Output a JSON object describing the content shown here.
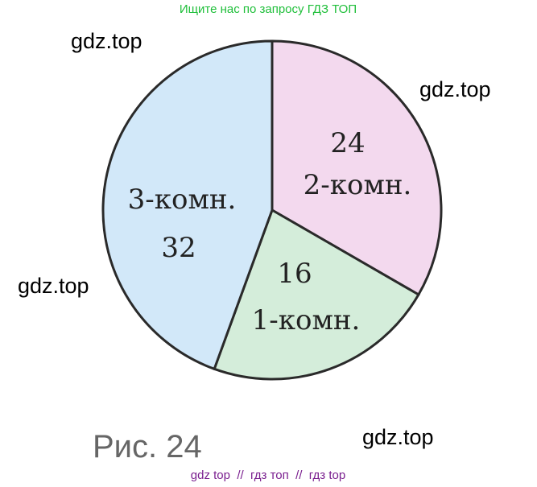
{
  "header": "Ищите нас по запросу ГДЗ ТОП",
  "watermarks": [
    "gdz.top",
    "gdz.top",
    "gdz.top",
    "gdz.top"
  ],
  "footer": "gdz top  //  гдз топ  //  гдз top",
  "chart_data": {
    "type": "pie",
    "caption": "Рис. 24",
    "categories": [
      "2-комн.",
      "1-комн.",
      "3-комн."
    ],
    "values": [
      24,
      16,
      32
    ],
    "colors": [
      "#f3d9ee",
      "#d4edda",
      "#d2e8f9"
    ]
  }
}
